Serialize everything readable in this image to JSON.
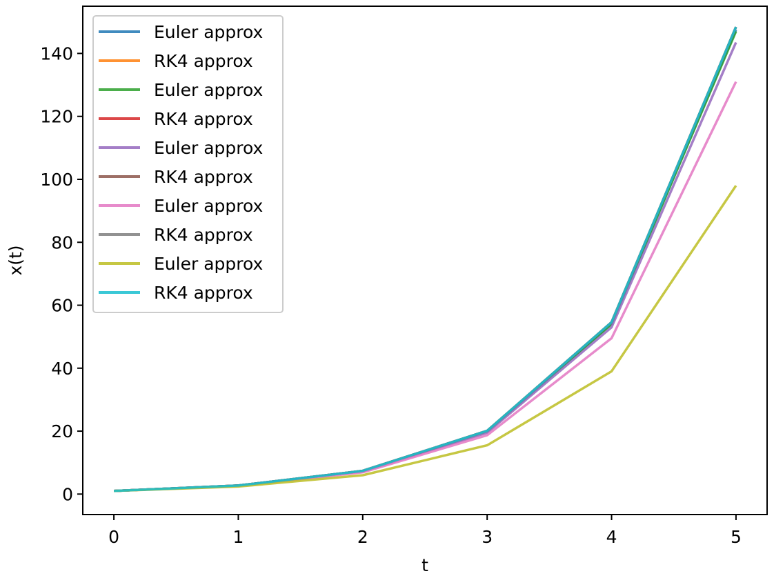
{
  "chart_data": {
    "type": "line",
    "xlabel": "t",
    "ylabel": "x(t)",
    "x": [
      0,
      1,
      2,
      3,
      4,
      5
    ],
    "xlim": [
      -0.25,
      5.25
    ],
    "ylim": [
      -6.5,
      155
    ],
    "x_ticks": [
      "0",
      "1",
      "2",
      "3",
      "4",
      "5"
    ],
    "y_ticks": [
      0,
      20,
      40,
      60,
      80,
      100,
      120,
      140
    ],
    "y_tick_labels": [
      "0",
      "20",
      "40",
      "60",
      "80",
      "100",
      "120",
      "140"
    ],
    "grid": false,
    "legend_position": "top-left",
    "series": [
      {
        "name": "Euler approx",
        "color": "#1f77b4",
        "values": [
          1,
          2.7,
          7.3,
          20.0,
          54.2,
          147.5
        ]
      },
      {
        "name": "RK4 approx",
        "color": "#ff7f0e",
        "values": [
          1,
          2.72,
          7.39,
          20.1,
          54.6,
          148.4
        ]
      },
      {
        "name": "Euler approx",
        "color": "#2ca02c",
        "values": [
          1,
          2.7,
          7.3,
          19.9,
          54.0,
          147.0
        ]
      },
      {
        "name": "RK4 approx",
        "color": "#d62728",
        "values": [
          1,
          2.72,
          7.39,
          20.1,
          54.6,
          148.4
        ]
      },
      {
        "name": "Euler approx",
        "color": "#9467bd",
        "values": [
          1,
          2.68,
          7.2,
          19.5,
          53.0,
          143.5
        ]
      },
      {
        "name": "RK4 approx",
        "color": "#8c564b",
        "values": [
          1,
          2.72,
          7.39,
          20.1,
          54.6,
          148.4
        ]
      },
      {
        "name": "Euler approx",
        "color": "#e377c2",
        "values": [
          1,
          2.6,
          6.9,
          18.7,
          49.5,
          131.0
        ]
      },
      {
        "name": "RK4 approx",
        "color": "#7f7f7f",
        "values": [
          1,
          2.72,
          7.39,
          20.1,
          54.6,
          148.4
        ]
      },
      {
        "name": "Euler approx",
        "color": "#bcbd22",
        "values": [
          1,
          2.4,
          6.0,
          15.5,
          39.0,
          98.0
        ]
      },
      {
        "name": "RK4 approx",
        "color": "#17becf",
        "values": [
          1,
          2.72,
          7.39,
          20.1,
          54.6,
          148.4
        ]
      }
    ]
  }
}
